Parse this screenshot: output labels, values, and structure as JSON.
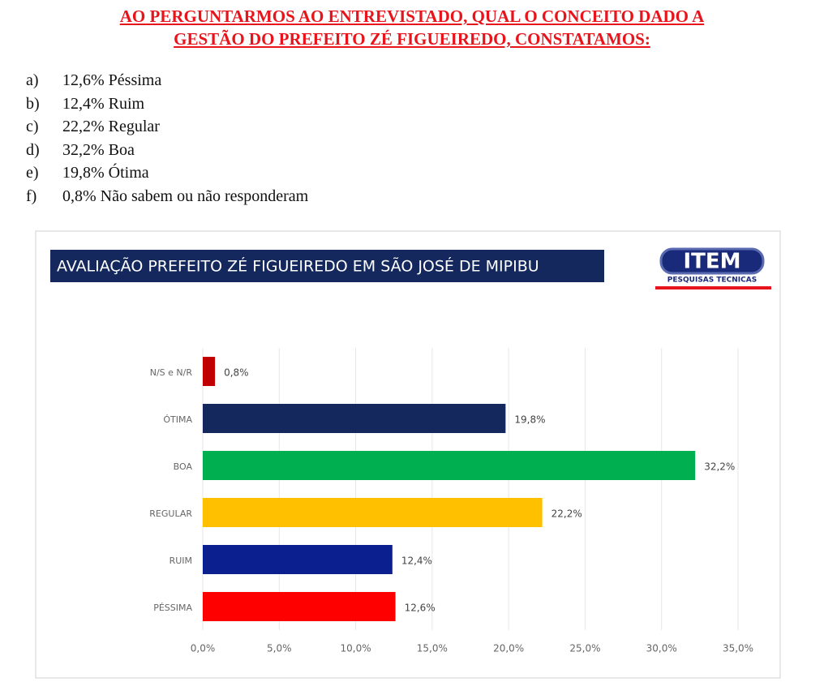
{
  "header": {
    "lines": [
      "AO PERGUNTARMOS AO ENTREVISTADO, QUAL O CONCEITO DADO A",
      "GESTÃO DO PREFEITO ZÉ FIGUEIREDO, CONSTATAMOS:"
    ]
  },
  "list": [
    {
      "key": "a)",
      "text": "12,6% Péssima"
    },
    {
      "key": "b)",
      "text": "12,4% Ruim"
    },
    {
      "key": "c)",
      "text": "22,2% Regular"
    },
    {
      "key": "d)",
      "text": "32,2% Boa"
    },
    {
      "key": "e)",
      "text": "19,8% Ótima"
    },
    {
      "key": "f)",
      "text": "0,8% Não sabem ou não responderam"
    }
  ],
  "logo": {
    "title": "ITEM",
    "subtitle": "PESQUISAS TECNICAS"
  },
  "chart_data": {
    "type": "bar",
    "orientation": "horizontal",
    "title": "AVALIAÇÃO PREFEITO ZÉ FIGUEIREDO EM SÃO JOSÉ DE MIPIBU",
    "categories": [
      "N/S e N/R",
      "ÓTIMA",
      "BOA",
      "REGULAR",
      "RUIM",
      "PÉSSIMA"
    ],
    "values": [
      0.8,
      19.8,
      32.2,
      22.2,
      12.4,
      12.6
    ],
    "value_labels": [
      "0,8%",
      "19,8%",
      "32,2%",
      "22,2%",
      "12,4%",
      "12,6%"
    ],
    "colors": [
      "#c00000",
      "#14285e",
      "#00b050",
      "#ffc000",
      "#0c1f8f",
      "#ff0000"
    ],
    "xlim": [
      0,
      35
    ],
    "xticks": [
      {
        "value": 0,
        "label": "0,0%"
      },
      {
        "value": 5,
        "label": "5,0%"
      },
      {
        "value": 10,
        "label": "10,0%"
      },
      {
        "value": 15,
        "label": "15,0%"
      },
      {
        "value": 20,
        "label": "20,0%"
      },
      {
        "value": 25,
        "label": "25,0%"
      },
      {
        "value": 30,
        "label": "30,0%"
      },
      {
        "value": 35,
        "label": "35,0%"
      }
    ],
    "grid": true
  }
}
